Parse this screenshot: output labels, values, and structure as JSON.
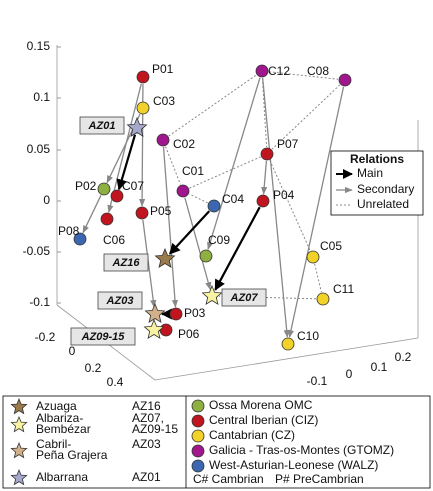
{
  "z_axis_ticks": [
    "0.15",
    "0.1",
    "0.05",
    "0",
    "-0.05",
    "-0.1"
  ],
  "x_axis_ticks": [
    "-0.2",
    "0",
    "0.2",
    "0.4"
  ],
  "y_axis_ticks": [
    "-0.1",
    "0",
    "0.1",
    "0.2"
  ],
  "nodes": [
    "P01",
    "C03",
    "C12",
    "C08",
    "C02",
    "P07",
    "C01",
    "P02",
    "C07",
    "C04",
    "P04",
    "P05",
    "C06",
    "P08",
    "C09",
    "C05",
    "C11",
    "P03",
    "P06",
    "C10"
  ],
  "stars": [
    "AZ01",
    "AZ16",
    "AZ07",
    "AZ03",
    "AZ09-15"
  ],
  "relations": {
    "title": "Relations",
    "items": [
      "Main",
      "Secondary",
      "Unrelated"
    ]
  },
  "legend_sites": [
    {
      "name": [
        "Azuaga"
      ],
      "code": [
        "AZ16"
      ]
    },
    {
      "name": [
        "Albariza-",
        "Bembézar"
      ],
      "code": [
        "AZ07,",
        "AZ09-15"
      ]
    },
    {
      "name": [
        "Cabril-",
        "Peña Grajera"
      ],
      "code": [
        "AZ03"
      ]
    },
    {
      "name": [
        "Albarrana"
      ],
      "code": [
        "AZ01"
      ]
    }
  ],
  "legend_zones": [
    "Ossa Morena OMC",
    "Central Iberian (CIZ)",
    "Cantabrian (CZ)",
    "Galicia - Tras-os-Montes (GTOMZ)",
    "West-Asturian-Leonese (WALZ)"
  ],
  "legend_note": [
    "C# Cambrian",
    "P# PreCambrian"
  ]
}
